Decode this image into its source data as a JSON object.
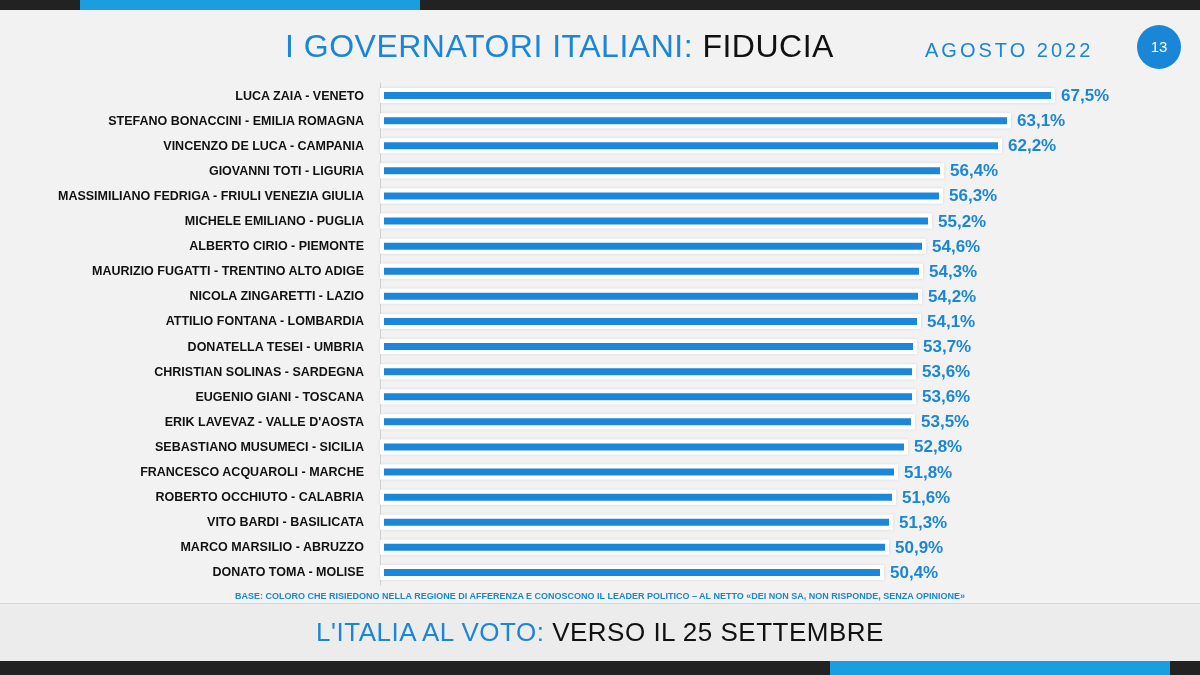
{
  "chart_data": {
    "type": "bar",
    "orientation": "horizontal",
    "title": "I GOVERNATORI ITALIANI: FIDUCIA",
    "subtitle": "AGOSTO 2022",
    "categories": [
      "LUCA ZAIA - VENETO",
      "STEFANO BONACCINI - EMILIA ROMAGNA",
      "VINCENZO DE LUCA - CAMPANIA",
      "GIOVANNI TOTI - LIGURIA",
      "MASSIMILIANO FEDRIGA - FRIULI VENEZIA GIULIA",
      "MICHELE EMILIANO - PUGLIA",
      "ALBERTO CIRIO - PIEMONTE",
      "MAURIZIO FUGATTI - TRENTINO ALTO ADIGE",
      "NICOLA ZINGARETTI - LAZIO",
      "ATTILIO FONTANA - LOMBARDIA",
      "DONATELLA TESEI - UMBRIA",
      "CHRISTIAN SOLINAS - SARDEGNA",
      "EUGENIO GIANI - TOSCANA",
      "ERIK LAVEVAZ - VALLE D'AOSTA",
      "SEBASTIANO MUSUMECI - SICILIA",
      "FRANCESCO ACQUAROLI - MARCHE",
      "ROBERTO OCCHIUTO - CALABRIA",
      "VITO BARDI - BASILICATA",
      "MARCO MARSILIO - ABRUZZO",
      "DONATO TOMA - MOLISE"
    ],
    "values": [
      67.5,
      63.1,
      62.2,
      56.4,
      56.3,
      55.2,
      54.6,
      54.3,
      54.2,
      54.1,
      53.7,
      53.6,
      53.6,
      53.5,
      52.8,
      51.8,
      51.6,
      51.3,
      50.9,
      50.4
    ],
    "value_labels": [
      "67,5%",
      "63,1%",
      "62,2%",
      "56,4%",
      "56,3%",
      "55,2%",
      "54,6%",
      "54,3%",
      "54,2%",
      "54,1%",
      "53,7%",
      "53,6%",
      "53,6%",
      "53,5%",
      "52,8%",
      "51,8%",
      "51,6%",
      "51,3%",
      "50,9%",
      "50,4%"
    ],
    "color": "#1a86d8",
    "annotations": [
      "BASE: COLORO CHE RISIEDONO NELLA REGIONE DI AFFERENZA E CONOSCONO IL LEADER POLITICO – AL NETTO «DEI NON SA, NON RISPONDE, SENZA OPINIONE»",
      "L'ITALIA AL VOTO: VERSO IL 25 SETTEMBRE",
      "13"
    ]
  }
}
